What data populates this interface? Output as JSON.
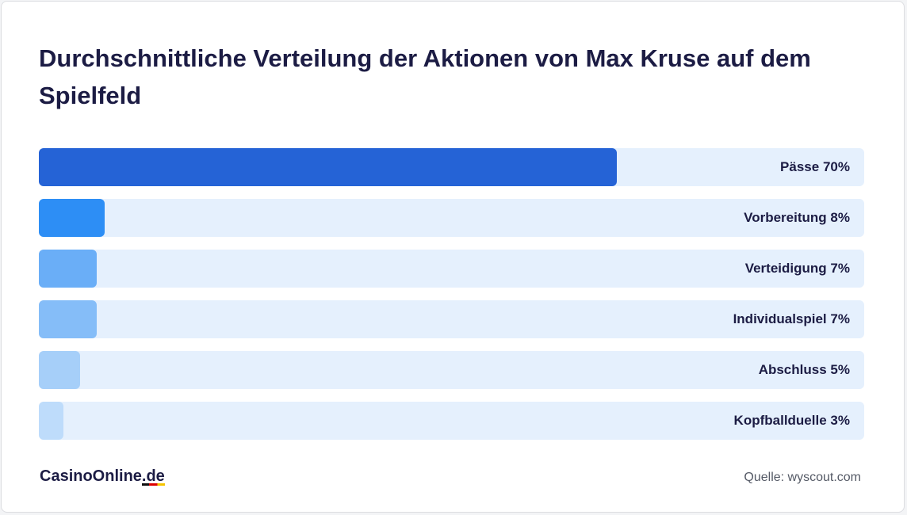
{
  "chart_data": {
    "type": "bar",
    "orientation": "horizontal",
    "title": "Durchschnittliche Verteilung der Aktionen von Max Kruse auf dem Spielfeld",
    "categories": [
      "Pässe",
      "Vorbereitung",
      "Verteidigung",
      "Individualspiel",
      "Abschluss",
      "Kopfballduelle"
    ],
    "values": [
      70,
      8,
      7,
      7,
      5,
      3
    ],
    "value_labels": [
      "70%",
      "8%",
      "7%",
      "7%",
      "5%",
      "3%"
    ],
    "colors": [
      "#2563d6",
      "#2d8ef5",
      "#6aaef7",
      "#85bdf8",
      "#a6cff9",
      "#bedcfb"
    ],
    "xlim": [
      0,
      100
    ],
    "brand": "CasinoOnline",
    "brand_domain": ".de",
    "source": "Quelle: wyscout.com"
  }
}
